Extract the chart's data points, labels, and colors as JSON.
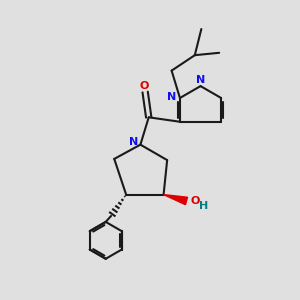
{
  "bg_color": "#e0e0e0",
  "bond_color": "#1a1a1a",
  "N_color": "#1010ee",
  "O_color": "#dd0000",
  "OH_color": "#008080",
  "lw": 1.5,
  "fig_w": 3.0,
  "fig_h": 3.0,
  "dpi": 100,
  "xlim": [
    0,
    10
  ],
  "ylim": [
    0,
    10
  ]
}
